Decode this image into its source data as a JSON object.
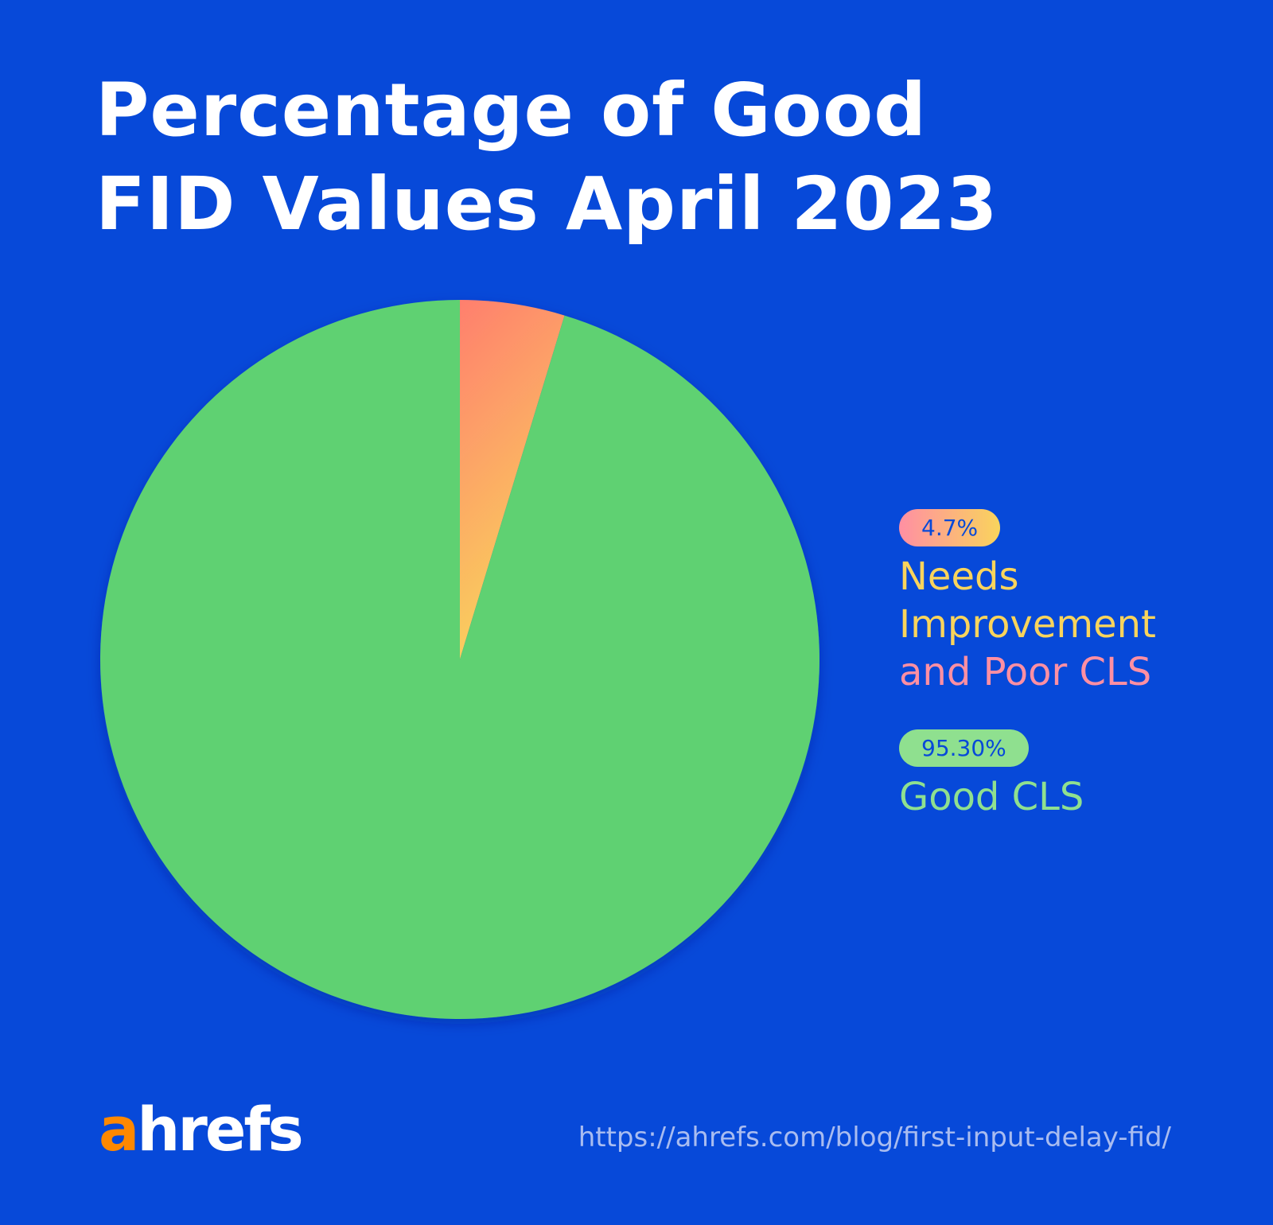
{
  "chart_data": {
    "type": "pie",
    "title_lines": [
      "Percentage of Good",
      "FID Values April 2023"
    ],
    "slices": [
      {
        "label_lines": [
          "Needs",
          "Improvement",
          "and Poor CLS"
        ],
        "value": 4.7,
        "value_label": "4.7%",
        "color": "#FF7F6E",
        "color2": "#F9D45C"
      },
      {
        "label_lines": [
          "Good CLS"
        ],
        "value": 95.3,
        "value_label": "95.30%",
        "color": "#5FD172"
      }
    ],
    "legend_placement": "right"
  },
  "footer": {
    "logo": "ahrefs",
    "logo_a": "a",
    "logo_rest": "hrefs",
    "url": "https://ahrefs.com/blog/first-input-delay-fid/"
  },
  "colors": {
    "background": "#0749D9",
    "logo_accent": "#FF8800",
    "label_yellow": "#F9D45C",
    "label_pink": "#FF8FA3",
    "label_green": "#8FE08F"
  }
}
